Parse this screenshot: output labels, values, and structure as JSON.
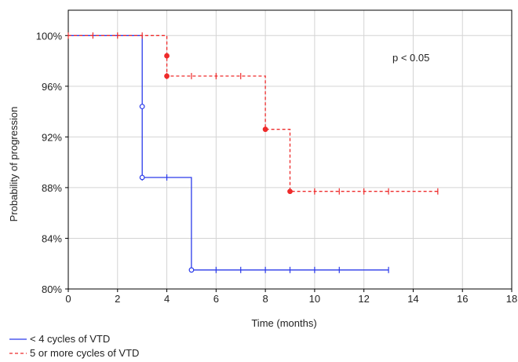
{
  "chart_data": {
    "type": "line",
    "subtype": "kaplan-meier step",
    "xlabel": "Time (months)",
    "ylabel": "Probability of progression",
    "xlim": [
      0,
      18
    ],
    "ylim": [
      80,
      102
    ],
    "xticks": [
      0,
      2,
      4,
      6,
      8,
      10,
      12,
      14,
      16,
      18
    ],
    "yticks": [
      80,
      84,
      88,
      92,
      96,
      100
    ],
    "ytick_labels": [
      "80%",
      "84%",
      "88%",
      "92%",
      "96%",
      "100%"
    ],
    "grid": true,
    "annotation": "p < 0.05",
    "legend_position": "bottom-left",
    "series": [
      {
        "name": "< 4 cycles of VTD",
        "color": "#2b3bea",
        "line_style": "solid",
        "steps": [
          [
            0,
            100
          ],
          [
            3,
            100
          ],
          [
            3,
            94.4
          ],
          [
            3,
            88.8
          ],
          [
            5,
            88.8
          ],
          [
            5,
            81.5
          ],
          [
            13,
            81.5
          ]
        ],
        "events": [
          [
            3,
            94.4
          ],
          [
            3,
            88.8
          ],
          [
            5,
            81.5
          ]
        ],
        "censored": [
          3,
          4,
          6,
          7,
          8,
          9,
          10,
          11,
          13
        ]
      },
      {
        "name": "5 or more cycles of VTD",
        "color": "#ee2b2b",
        "line_style": "dashed",
        "steps": [
          [
            0,
            100
          ],
          [
            4,
            100
          ],
          [
            4,
            98.4
          ],
          [
            4,
            96.8
          ],
          [
            8,
            96.8
          ],
          [
            8,
            92.6
          ],
          [
            9,
            92.6
          ],
          [
            9,
            87.7
          ],
          [
            15,
            87.7
          ]
        ],
        "events": [
          [
            4,
            98.4
          ],
          [
            4,
            96.8
          ],
          [
            8,
            92.6
          ],
          [
            9,
            87.7
          ]
        ],
        "censored": [
          0,
          1,
          2,
          3,
          4,
          5,
          6,
          7,
          10,
          11,
          12,
          13,
          15
        ]
      }
    ]
  }
}
